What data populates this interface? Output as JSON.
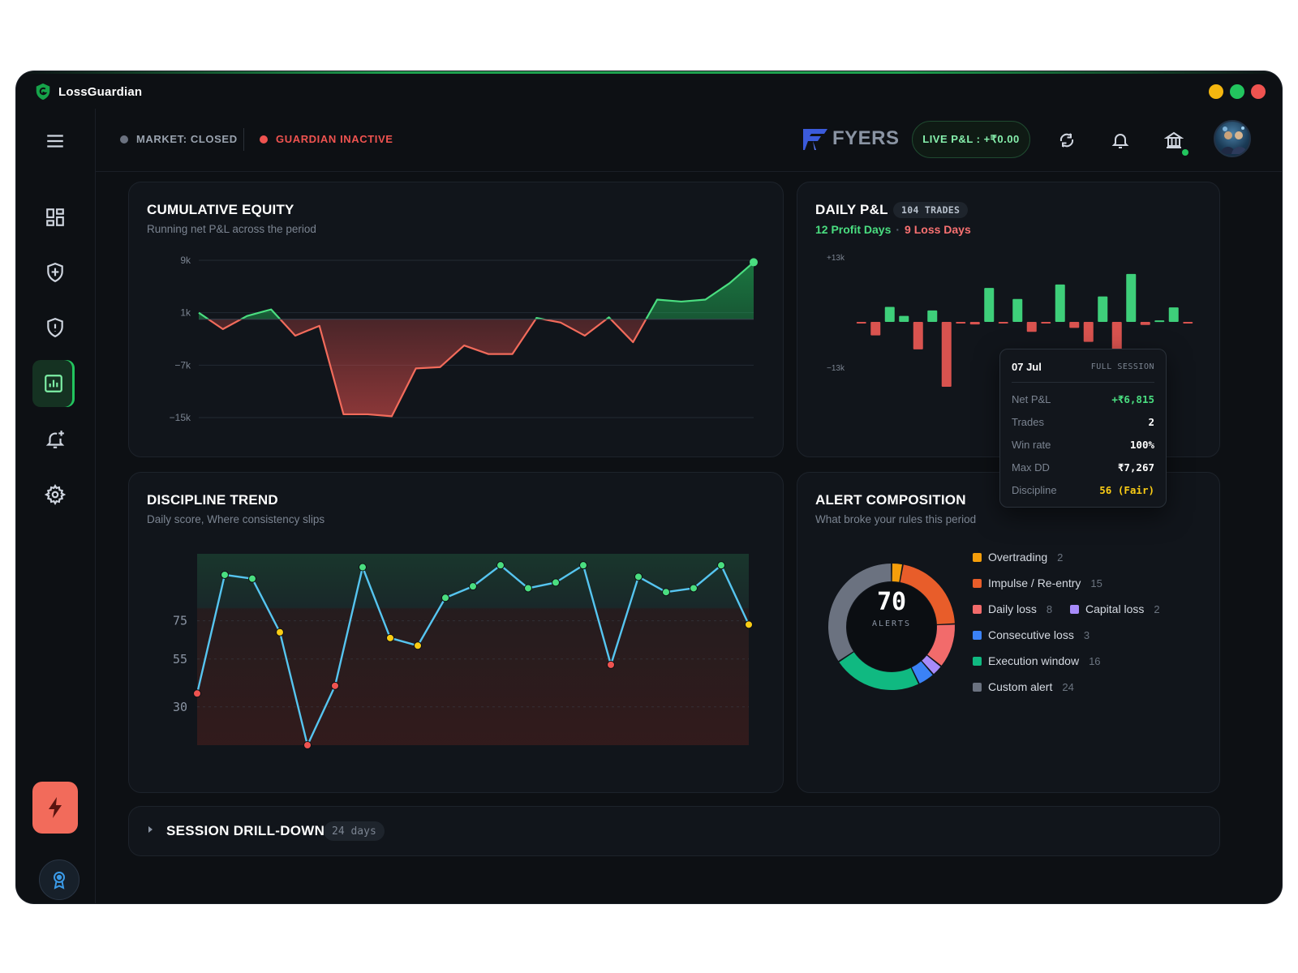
{
  "app": {
    "name": "LossGuardian"
  },
  "header": {
    "market_status": "MARKET: CLOSED",
    "guardian_status": "GUARDIAN INACTIVE",
    "broker": "FYERS",
    "live_pnl": "LIVE P&L : +₹0.00"
  },
  "colors": {
    "accent": "#22c55e",
    "loss": "#ef5350",
    "background": "#0d1014",
    "card": "#11151b"
  },
  "sidebar": {
    "items": [
      {
        "icon": "dashboard-icon"
      },
      {
        "icon": "shield-check-icon"
      },
      {
        "icon": "shield-alert-icon"
      },
      {
        "icon": "analytics-icon",
        "active": true
      },
      {
        "icon": "bell-plus-icon"
      },
      {
        "icon": "settings-icon"
      }
    ],
    "quick_action_icon": "bolt-icon",
    "bottom_icon": "award-icon"
  },
  "equity": {
    "title": "CUMULATIVE EQUITY",
    "subtitle": "Running net P&L across the period"
  },
  "daily": {
    "title": "DAILY P&L",
    "trades": "104 TRADES",
    "profit_days": "12 Profit Days",
    "separator": "·",
    "loss_days": "9 Loss Days"
  },
  "tooltip": {
    "date": "07 Jul",
    "session": "FULL SESSION",
    "rows": [
      {
        "label": "Net P&L",
        "value": "+₹6,815"
      },
      {
        "label": "Trades",
        "value": "2"
      },
      {
        "label": "Win rate",
        "value": "100%"
      },
      {
        "label": "Max DD",
        "value": "₹7,267"
      },
      {
        "label": "Discipline",
        "value": "56 (Fair)"
      }
    ]
  },
  "discipline": {
    "title": "DISCIPLINE TREND",
    "subtitle": "Daily score, Where consistency slips"
  },
  "alerts": {
    "title": "ALERT COMPOSITION",
    "subtitle": "What broke your rules this period",
    "total": "70",
    "total_label": "ALERTS",
    "items": [
      {
        "label": "Overtrading",
        "count": "2",
        "color": "#f59e0b"
      },
      {
        "label": "Impulse / Re-entry",
        "count": "15",
        "color": "#e85d2a"
      },
      {
        "label": "Daily loss",
        "count": "8",
        "color": "#f26b6b"
      },
      {
        "label": "Capital loss",
        "count": "2",
        "color": "#a78bfa"
      },
      {
        "label": "Consecutive loss",
        "count": "3",
        "color": "#3b82f6"
      },
      {
        "label": "Execution window",
        "count": "16",
        "color": "#10b981"
      },
      {
        "label": "Custom alert",
        "count": "24",
        "color": "#6b7280"
      }
    ]
  },
  "session": {
    "title": "SESSION DRILL-DOWN",
    "days": "24 days"
  },
  "chart_data": [
    {
      "type": "area",
      "title": "CUMULATIVE EQUITY",
      "y_ticks": [
        "9k",
        "1k",
        "−7k",
        "−15k"
      ],
      "ylim": [
        -15000,
        9000
      ],
      "series": [
        {
          "values": [
            1000,
            -1500,
            500,
            1500,
            -2500,
            -1000,
            -14500,
            -14500,
            -14800,
            -7500,
            -7300,
            -4000,
            -5300,
            -5300,
            200,
            -500,
            -2500,
            300,
            -3500,
            3000,
            2700,
            3000,
            5500,
            8700
          ]
        }
      ]
    },
    {
      "type": "bar",
      "title": "DAILY P&L",
      "y_ticks": [
        "+13k",
        "−13k"
      ],
      "ylim": [
        -13000,
        13000
      ],
      "series": [
        {
          "values": [
            -200,
            -2700,
            3000,
            1200,
            -5500,
            2300,
            -13000,
            -200,
            -500,
            6800,
            -200,
            4600,
            -2000,
            -200,
            7500,
            -1200,
            -4000,
            5100,
            -6500,
            9600,
            -600,
            300,
            2900,
            -200
          ]
        }
      ]
    },
    {
      "type": "line",
      "title": "DISCIPLINE TREND",
      "y_ticks": [
        "75",
        "55",
        "30"
      ],
      "ylim": [
        10,
        110
      ],
      "series": [
        {
          "values": [
            37,
            99,
            97,
            69,
            10,
            41,
            103,
            66,
            62,
            87,
            93,
            104,
            92,
            95,
            104,
            52,
            98,
            90,
            92,
            104,
            73
          ]
        }
      ]
    },
    {
      "type": "pie",
      "title": "ALERT COMPOSITION",
      "categories": [
        "Overtrading",
        "Impulse / Re-entry",
        "Daily loss",
        "Capital loss",
        "Consecutive loss",
        "Execution window",
        "Custom alert"
      ],
      "values": [
        2,
        15,
        8,
        2,
        3,
        16,
        24
      ]
    }
  ]
}
